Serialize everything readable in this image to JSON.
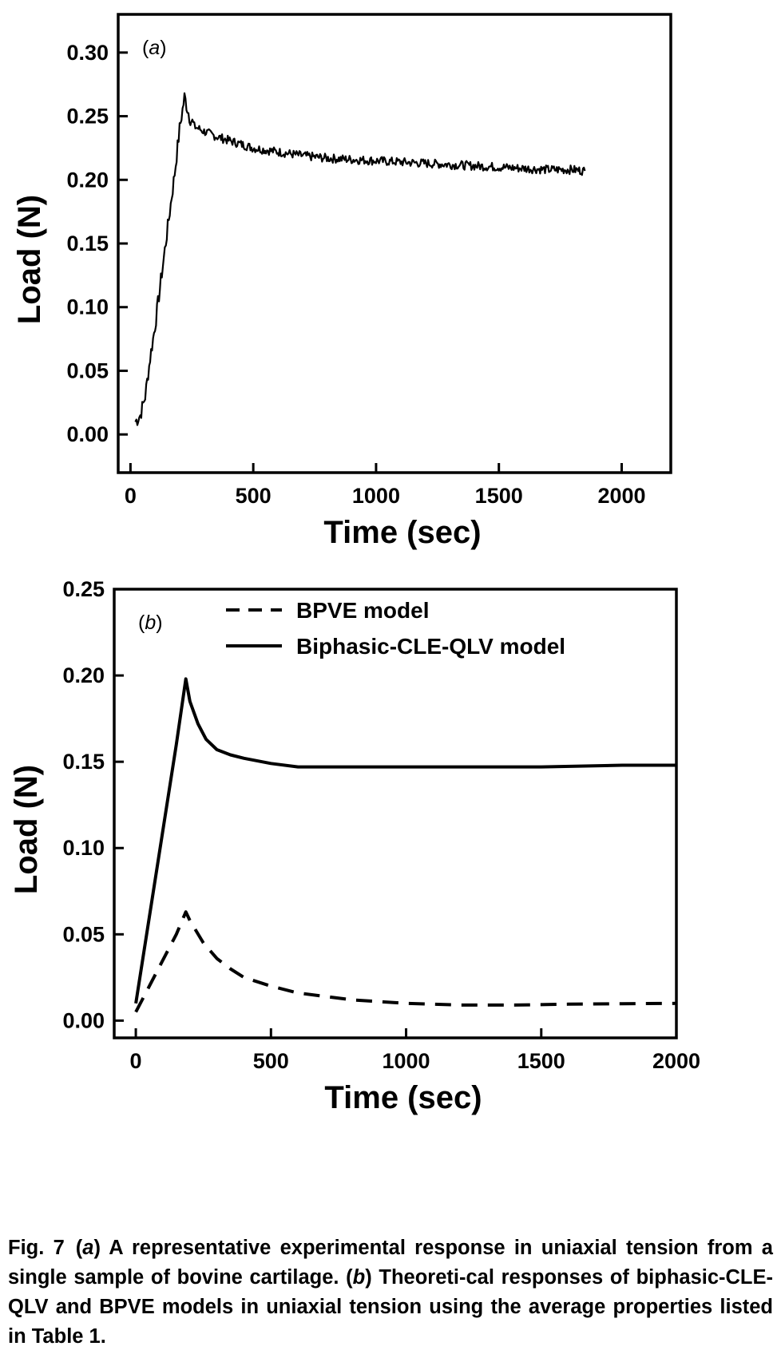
{
  "chart_data": [
    {
      "type": "line",
      "panel_label": "a",
      "xlabel": "Time (sec)",
      "ylabel": "Load (N)",
      "xlim": [
        -50,
        2200
      ],
      "ylim": [
        -0.03,
        0.33
      ],
      "xticks": [
        0,
        500,
        1000,
        1500,
        2000
      ],
      "xtick_labels": [
        "0",
        "500",
        "1000",
        "1500",
        "2000"
      ],
      "yticks": [
        0.0,
        0.05,
        0.1,
        0.15,
        0.2,
        0.25,
        0.3
      ],
      "ytick_labels": [
        "0.00",
        "0.05",
        "0.10",
        "0.15",
        "0.20",
        "0.25",
        "0.30"
      ],
      "grid": false,
      "series": [
        {
          "style": "noisy-solid",
          "x": [
            20,
            40,
            60,
            80,
            100,
            120,
            140,
            160,
            180,
            200,
            220,
            240,
            260,
            300,
            350,
            400,
            450,
            500,
            600,
            700,
            800,
            900,
            1000,
            1100,
            1200,
            1300,
            1400,
            1500,
            1600,
            1700,
            1800,
            1850
          ],
          "y": [
            0.01,
            0.015,
            0.03,
            0.06,
            0.085,
            0.115,
            0.145,
            0.175,
            0.205,
            0.24,
            0.265,
            0.25,
            0.242,
            0.238,
            0.234,
            0.231,
            0.228,
            0.225,
            0.222,
            0.219,
            0.217,
            0.216,
            0.215,
            0.214,
            0.213,
            0.212,
            0.211,
            0.21,
            0.209,
            0.208,
            0.208,
            0.207
          ]
        }
      ]
    },
    {
      "type": "line",
      "panel_label": "b",
      "xlabel": "Time (sec)",
      "ylabel": "Load (N)",
      "xlim": [
        -80,
        2000
      ],
      "ylim": [
        -0.01,
        0.25
      ],
      "xticks": [
        0,
        500,
        1000,
        1500,
        2000
      ],
      "xtick_labels": [
        "0",
        "500",
        "1000",
        "1500",
        "2000"
      ],
      "yticks": [
        0.0,
        0.05,
        0.1,
        0.15,
        0.2,
        0.25
      ],
      "ytick_labels": [
        "0.00",
        "0.05",
        "0.10",
        "0.15",
        "0.20",
        "0.25"
      ],
      "grid": false,
      "legend_position": "top-center",
      "series": [
        {
          "name": "BPVE model",
          "style": "dashed",
          "x": [
            0,
            50,
            100,
            150,
            185,
            200,
            250,
            300,
            350,
            400,
            500,
            600,
            700,
            800,
            900,
            1000,
            1200,
            1400,
            1600,
            1800,
            2000
          ],
          "y": [
            0.005,
            0.02,
            0.035,
            0.05,
            0.063,
            0.058,
            0.045,
            0.036,
            0.03,
            0.025,
            0.02,
            0.016,
            0.014,
            0.012,
            0.011,
            0.01,
            0.009,
            0.009,
            0.0095,
            0.0098,
            0.01
          ]
        },
        {
          "name": "Biphasic-CLE-QLV model",
          "style": "solid",
          "x": [
            0,
            50,
            100,
            150,
            185,
            200,
            230,
            260,
            300,
            350,
            400,
            500,
            600,
            700,
            800,
            1000,
            1200,
            1500,
            1800,
            2000
          ],
          "y": [
            0.01,
            0.06,
            0.11,
            0.16,
            0.198,
            0.185,
            0.172,
            0.163,
            0.157,
            0.154,
            0.152,
            0.149,
            0.147,
            0.147,
            0.147,
            0.147,
            0.147,
            0.147,
            0.148,
            0.148
          ]
        }
      ]
    }
  ],
  "caption": {
    "fig_label": "Fig. 7",
    "text_parts": [
      {
        "t": "(",
        "i": false
      },
      {
        "t": "a",
        "i": true
      },
      {
        "t": ") A representative experimental response in uniaxial tension from a single sample of bovine cartilage. (",
        "i": false
      },
      {
        "t": "b",
        "i": true
      },
      {
        "t": ") Theoreti-cal responses of biphasic-CLE-QLV and BPVE models in uniaxial tension using the average properties listed in Table 1.",
        "i": false
      }
    ]
  }
}
